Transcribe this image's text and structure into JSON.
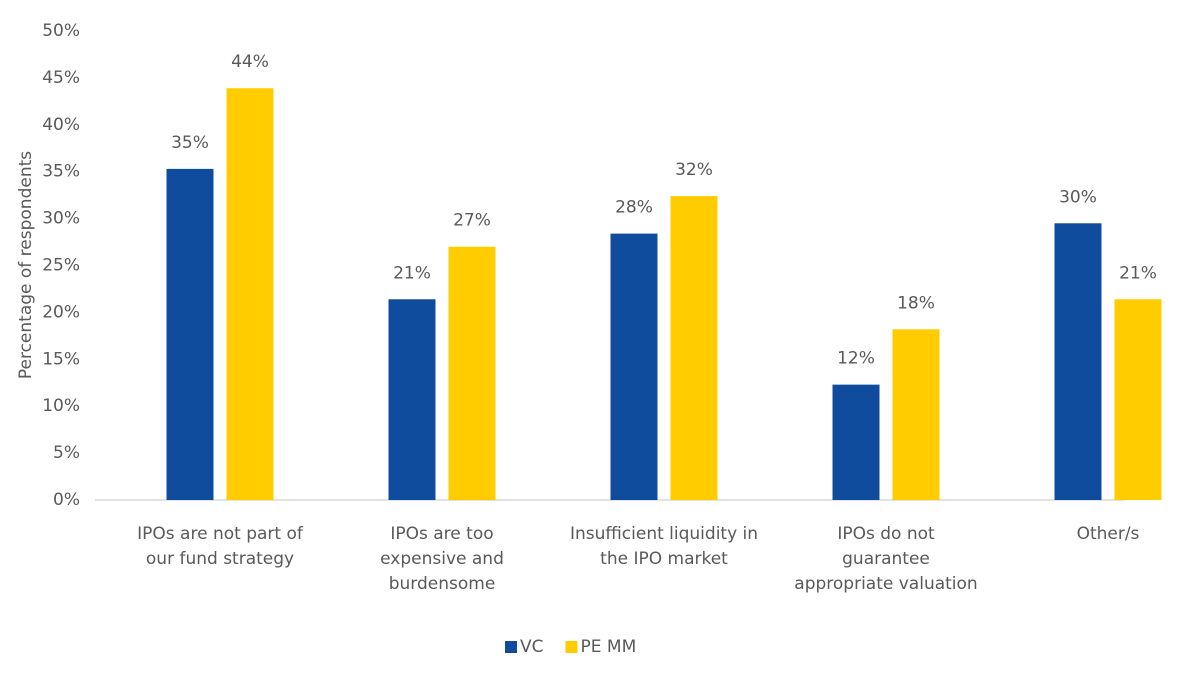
{
  "chart_data": {
    "type": "bar",
    "y_label": "Percentage of respondents",
    "categories": [
      "IPOs are not part of our fund strategy",
      "IPOs are too expensive and burdensome",
      "Insufficient liquidity in the IPO market",
      "IPOs do not guarantee appropriate valuation",
      "Other/s"
    ],
    "series": [
      {
        "name": "VC",
        "color": "#0f4c9e",
        "values": [
          35.3,
          21.4,
          28.4,
          12.3,
          29.5
        ],
        "value_labels": [
          "35%",
          "21%",
          "28%",
          "12%",
          "30%"
        ]
      },
      {
        "name": "PE MM",
        "color": "#ffcc00",
        "values": [
          43.9,
          27.0,
          32.4,
          18.2,
          21.4
        ],
        "value_labels": [
          "44%",
          "27%",
          "32%",
          "18%",
          "21%"
        ]
      }
    ],
    "ylim": [
      0,
      50
    ],
    "yticks": [
      {
        "value": 0,
        "label": "0%"
      },
      {
        "value": 5,
        "label": "5%"
      },
      {
        "value": 10,
        "label": "10%"
      },
      {
        "value": 15,
        "label": "15%"
      },
      {
        "value": 20,
        "label": "20%"
      },
      {
        "value": 25,
        "label": "25%"
      },
      {
        "value": 30,
        "label": "30%"
      },
      {
        "value": 35,
        "label": "35%"
      },
      {
        "value": 40,
        "label": "40%"
      },
      {
        "value": 45,
        "label": "45%"
      },
      {
        "value": 50,
        "label": "50%"
      }
    ],
    "grid": false,
    "legend": "bottom"
  }
}
